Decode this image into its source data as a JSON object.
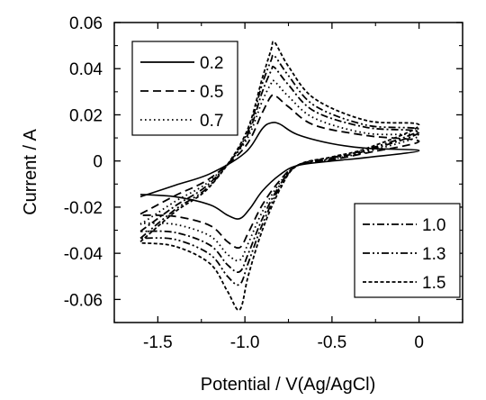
{
  "chart_data": {
    "type": "line",
    "title": "",
    "xlabel": "Potential / V(Ag/AgCl)",
    "ylabel": "Current / A",
    "xlim": [
      -1.75,
      0.25
    ],
    "ylim": [
      -0.07,
      0.06
    ],
    "xticks": [
      -1.5,
      -1.0,
      -0.5,
      0.0
    ],
    "xtick_labels": [
      "-1.5",
      "-1.0",
      "-0.5",
      "0"
    ],
    "yticks": [
      -0.06,
      -0.04,
      -0.02,
      0,
      0.02,
      0.04,
      0.06
    ],
    "ytick_labels": [
      "-0.06",
      "-0.04",
      "-0.02",
      "0",
      "0.02",
      "0.04",
      "0.06"
    ],
    "grid": false,
    "legend": [
      {
        "placement": "top-left",
        "entries": [
          "0.2",
          "0.5",
          "0.7"
        ]
      },
      {
        "placement": "bottom-right",
        "entries": [
          "1.0",
          "1.3",
          "1.5"
        ]
      }
    ],
    "series": [
      {
        "name": "0.2",
        "dash": "solid",
        "forward": [
          [
            -1.6,
            -0.0155
          ],
          [
            -1.4,
            -0.0105
          ],
          [
            -1.2,
            -0.0055
          ],
          [
            -1.0,
            0.0035
          ],
          [
            -0.9,
            0.014
          ],
          [
            -0.85,
            0.0165
          ],
          [
            -0.8,
            0.016
          ],
          [
            -0.7,
            0.0115
          ],
          [
            -0.5,
            0.0075
          ],
          [
            -0.3,
            0.0055
          ],
          [
            0.0,
            0.0045
          ]
        ],
        "reverse": [
          [
            0.0,
            0.0045
          ],
          [
            -0.3,
            0.0015
          ],
          [
            -0.5,
            0.0
          ],
          [
            -0.7,
            -0.002
          ],
          [
            -0.8,
            -0.006
          ],
          [
            -0.9,
            -0.013
          ],
          [
            -0.97,
            -0.0205
          ],
          [
            -1.03,
            -0.025
          ],
          [
            -1.1,
            -0.0235
          ],
          [
            -1.2,
            -0.019
          ],
          [
            -1.4,
            -0.0155
          ],
          [
            -1.6,
            -0.0145
          ]
        ]
      },
      {
        "name": "0.5",
        "dash": "long-dash",
        "forward": [
          [
            -1.6,
            -0.023
          ],
          [
            -1.4,
            -0.015
          ],
          [
            -1.2,
            -0.0075
          ],
          [
            -1.0,
            0.006
          ],
          [
            -0.9,
            0.021
          ],
          [
            -0.85,
            0.028
          ],
          [
            -0.82,
            0.028
          ],
          [
            -0.75,
            0.0235
          ],
          [
            -0.6,
            0.0155
          ],
          [
            -0.3,
            0.011
          ],
          [
            0.0,
            0.0085
          ]
        ],
        "reverse": [
          [
            0.0,
            0.0085
          ],
          [
            -0.3,
            0.0035
          ],
          [
            -0.5,
            0.0005
          ],
          [
            -0.7,
            -0.002
          ],
          [
            -0.8,
            -0.0085
          ],
          [
            -0.9,
            -0.019
          ],
          [
            -0.98,
            -0.031
          ],
          [
            -1.03,
            -0.0375
          ],
          [
            -1.1,
            -0.035
          ],
          [
            -1.2,
            -0.028
          ],
          [
            -1.4,
            -0.024
          ],
          [
            -1.6,
            -0.0235
          ]
        ]
      },
      {
        "name": "0.7",
        "dash": "dot",
        "forward": [
          [
            -1.6,
            -0.0275
          ],
          [
            -1.4,
            -0.0175
          ],
          [
            -1.2,
            -0.0085
          ],
          [
            -1.0,
            0.008
          ],
          [
            -0.9,
            0.026
          ],
          [
            -0.85,
            0.0335
          ],
          [
            -0.83,
            0.0345
          ],
          [
            -0.75,
            0.028
          ],
          [
            -0.6,
            0.0185
          ],
          [
            -0.3,
            0.012
          ],
          [
            0.0,
            0.011
          ]
        ],
        "reverse": [
          [
            0.0,
            0.011
          ],
          [
            -0.3,
            0.004
          ],
          [
            -0.5,
            0.0008
          ],
          [
            -0.7,
            -0.002
          ],
          [
            -0.8,
            -0.0095
          ],
          [
            -0.9,
            -0.022
          ],
          [
            -0.98,
            -0.0355
          ],
          [
            -1.03,
            -0.043
          ],
          [
            -1.1,
            -0.0405
          ],
          [
            -1.2,
            -0.0325
          ],
          [
            -1.4,
            -0.0275
          ],
          [
            -1.6,
            -0.027
          ]
        ]
      },
      {
        "name": "1.0",
        "dash": "dash-dot",
        "forward": [
          [
            -1.6,
            -0.0305
          ],
          [
            -1.4,
            -0.0195
          ],
          [
            -1.2,
            -0.0095
          ],
          [
            -1.0,
            0.009
          ],
          [
            -0.9,
            0.03
          ],
          [
            -0.85,
            0.039
          ],
          [
            -0.83,
            0.0405
          ],
          [
            -0.75,
            0.033
          ],
          [
            -0.6,
            0.0215
          ],
          [
            -0.3,
            0.0145
          ],
          [
            0.0,
            0.0125
          ]
        ],
        "reverse": [
          [
            0.0,
            0.0125
          ],
          [
            -0.3,
            0.0045
          ],
          [
            -0.5,
            0.0012
          ],
          [
            -0.7,
            -0.002
          ],
          [
            -0.8,
            -0.0105
          ],
          [
            -0.9,
            -0.025
          ],
          [
            -0.98,
            -0.04
          ],
          [
            -1.03,
            -0.048
          ],
          [
            -1.1,
            -0.045
          ],
          [
            -1.2,
            -0.0365
          ],
          [
            -1.4,
            -0.031
          ],
          [
            -1.6,
            -0.0305
          ]
        ]
      },
      {
        "name": "1.3",
        "dash": "dash-dot-dot",
        "forward": [
          [
            -1.6,
            -0.0335
          ],
          [
            -1.4,
            -0.021
          ],
          [
            -1.2,
            -0.0105
          ],
          [
            -1.0,
            0.01
          ],
          [
            -0.9,
            0.0335
          ],
          [
            -0.85,
            0.0435
          ],
          [
            -0.83,
            0.0455
          ],
          [
            -0.75,
            0.037
          ],
          [
            -0.6,
            0.024
          ],
          [
            -0.3,
            0.0155
          ],
          [
            0.0,
            0.0135
          ]
        ],
        "reverse": [
          [
            0.0,
            0.0135
          ],
          [
            -0.3,
            0.005
          ],
          [
            -0.5,
            0.0015
          ],
          [
            -0.7,
            -0.002
          ],
          [
            -0.8,
            -0.0115
          ],
          [
            -0.9,
            -0.0275
          ],
          [
            -0.98,
            -0.044
          ],
          [
            -1.03,
            -0.0535
          ],
          [
            -1.1,
            -0.05
          ],
          [
            -1.2,
            -0.0405
          ],
          [
            -1.4,
            -0.034
          ],
          [
            -1.6,
            -0.0335
          ]
        ]
      },
      {
        "name": "1.5",
        "dash": "short-dash",
        "forward": [
          [
            -1.6,
            -0.035
          ],
          [
            -1.4,
            -0.022
          ],
          [
            -1.2,
            -0.011
          ],
          [
            -1.0,
            0.011
          ],
          [
            -0.9,
            0.036
          ],
          [
            -0.85,
            0.048
          ],
          [
            -0.83,
            0.0515
          ],
          [
            -0.75,
            0.041
          ],
          [
            -0.6,
            0.027
          ],
          [
            -0.3,
            0.0175
          ],
          [
            0.0,
            0.0155
          ]
        ],
        "reverse": [
          [
            0.0,
            0.0155
          ],
          [
            -0.3,
            0.0055
          ],
          [
            -0.5,
            0.0018
          ],
          [
            -0.7,
            -0.002
          ],
          [
            -0.8,
            -0.0125
          ],
          [
            -0.9,
            -0.03
          ],
          [
            -0.98,
            -0.0495
          ],
          [
            -1.03,
            -0.0645
          ],
          [
            -1.1,
            -0.0565
          ],
          [
            -1.2,
            -0.0445
          ],
          [
            -1.4,
            -0.037
          ],
          [
            -1.6,
            -0.0355
          ]
        ]
      }
    ]
  }
}
